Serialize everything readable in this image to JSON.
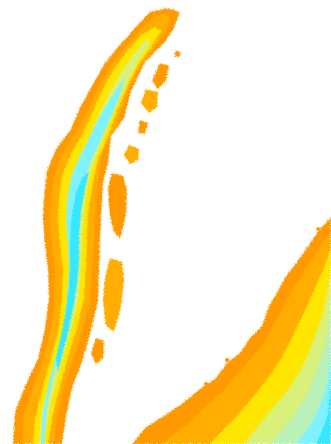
{
  "map": {
    "background": "#ffffff",
    "palette": {
      "outer_orange": "#ff9900",
      "mid_orange": "#ffad00",
      "yellow_orange": "#ffcc00",
      "yellow": "#ffe600",
      "yellow_green": "#d9f07a",
      "pale_green": "#b9f1b8",
      "cyan": "#7ff2ff",
      "aqua": "#35e7ff"
    }
  }
}
